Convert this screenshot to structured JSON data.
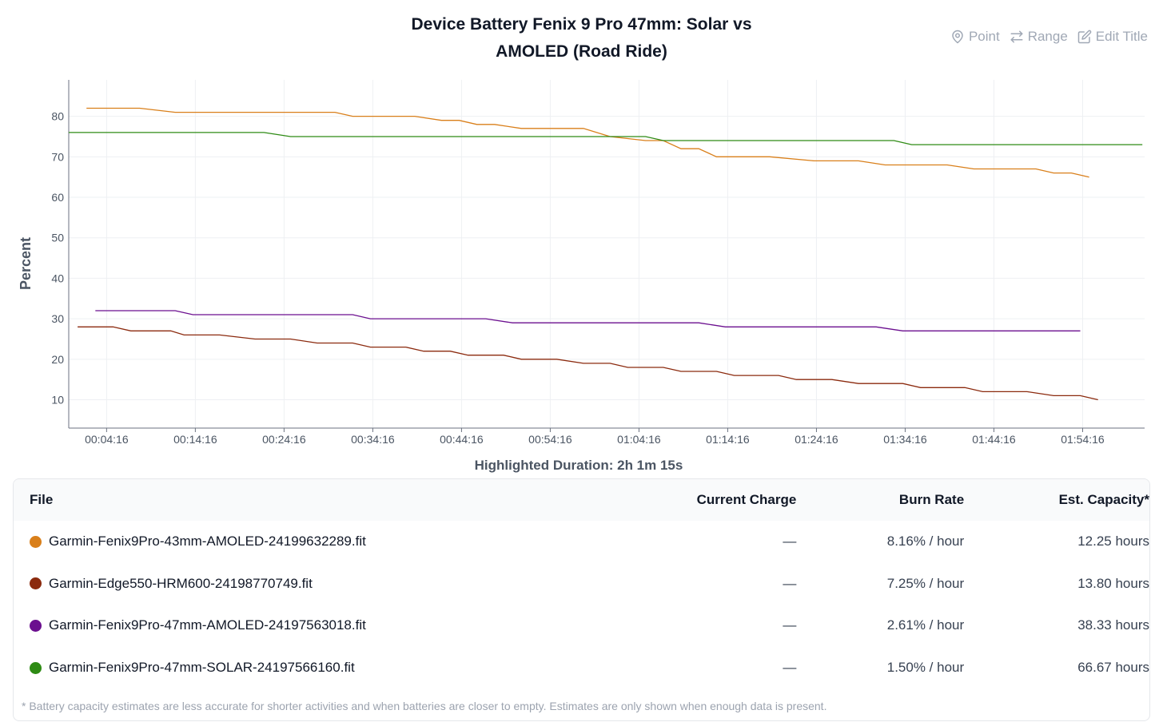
{
  "chart_title_line1": "Device Battery Fenix 9 Pro 47mm: Solar vs",
  "chart_title_line2": "AMOLED (Road Ride)",
  "toolbar": {
    "point": "Point",
    "range": "Range",
    "edit_title": "Edit Title"
  },
  "highlighted_duration": "Highlighted Duration: 2h 1m 15s",
  "table": {
    "headers": {
      "file": "File",
      "current_charge": "Current Charge",
      "burn_rate": "Burn Rate",
      "est_capacity": "Est. Capacity*"
    },
    "rows": [
      {
        "file": "Garmin-Fenix9Pro-43mm-AMOLED-24199632289.fit",
        "color": "#d97f1a",
        "current_charge": "—",
        "burn_rate": "8.16% / hour",
        "est_capacity": "12.25 hours"
      },
      {
        "file": "Garmin-Edge550-HRM600-24198770749.fit",
        "color": "#8b2a0e",
        "current_charge": "—",
        "burn_rate": "7.25% / hour",
        "est_capacity": "13.80 hours"
      },
      {
        "file": "Garmin-Fenix9Pro-47mm-AMOLED-24197563018.fit",
        "color": "#6b0f8f",
        "current_charge": "—",
        "burn_rate": "2.61% / hour",
        "est_capacity": "38.33 hours"
      },
      {
        "file": "Garmin-Fenix9Pro-47mm-SOLAR-24197566160.fit",
        "color": "#2e8b14",
        "current_charge": "—",
        "burn_rate": "1.50% / hour",
        "est_capacity": "66.67 hours"
      }
    ],
    "footnote": "* Battery capacity estimates are less accurate for shorter activities and when batteries are closer to empty. Estimates are only shown when enough data is present."
  },
  "chart_data": {
    "type": "line",
    "ylabel": "Percent",
    "ylim": [
      3,
      89
    ],
    "xlim": [
      "00:00:00",
      "02:01:15"
    ],
    "yticks": [
      10,
      20,
      30,
      40,
      50,
      60,
      70,
      80
    ],
    "xticks": [
      "00:04:16",
      "00:14:16",
      "00:24:16",
      "00:34:16",
      "00:44:16",
      "00:54:16",
      "01:04:16",
      "01:14:16",
      "01:24:16",
      "01:34:16",
      "01:44:16",
      "01:54:16"
    ],
    "grid": true,
    "series": [
      {
        "name": "Garmin-Fenix9Pro-43mm-AMOLED-24199632289.fit",
        "color": "#d97f1a",
        "points": [
          [
            "00:02:00",
            82
          ],
          [
            "00:08:00",
            82
          ],
          [
            "00:12:00",
            81
          ],
          [
            "00:30:00",
            81
          ],
          [
            "00:32:00",
            80
          ],
          [
            "00:39:00",
            80
          ],
          [
            "00:42:00",
            79
          ],
          [
            "00:44:00",
            79
          ],
          [
            "00:46:00",
            78
          ],
          [
            "00:48:00",
            78
          ],
          [
            "00:51:00",
            77
          ],
          [
            "00:58:00",
            77
          ],
          [
            "01:01:00",
            75
          ],
          [
            "01:05:00",
            74
          ],
          [
            "01:07:00",
            74
          ],
          [
            "01:09:00",
            72
          ],
          [
            "01:11:00",
            72
          ],
          [
            "01:13:00",
            70
          ],
          [
            "01:19:00",
            70
          ],
          [
            "01:24:00",
            69
          ],
          [
            "01:29:00",
            69
          ],
          [
            "01:32:00",
            68
          ],
          [
            "01:39:00",
            68
          ],
          [
            "01:42:00",
            67
          ],
          [
            "01:49:00",
            67
          ],
          [
            "01:51:00",
            66
          ],
          [
            "01:53:00",
            66
          ],
          [
            "01:55:00",
            65
          ]
        ]
      },
      {
        "name": "Garmin-Edge550-HRM600-24198770749.fit",
        "color": "#8b2a0e",
        "points": [
          [
            "00:01:00",
            28
          ],
          [
            "00:05:00",
            28
          ],
          [
            "00:07:00",
            27
          ],
          [
            "00:11:30",
            27
          ],
          [
            "00:13:00",
            26
          ],
          [
            "00:17:00",
            26
          ],
          [
            "00:21:00",
            25
          ],
          [
            "00:25:00",
            25
          ],
          [
            "00:28:00",
            24
          ],
          [
            "00:32:00",
            24
          ],
          [
            "00:34:00",
            23
          ],
          [
            "00:38:00",
            23
          ],
          [
            "00:40:00",
            22
          ],
          [
            "00:43:00",
            22
          ],
          [
            "00:45:00",
            21
          ],
          [
            "00:49:00",
            21
          ],
          [
            "00:51:00",
            20
          ],
          [
            "00:55:00",
            20
          ],
          [
            "00:58:00",
            19
          ],
          [
            "01:01:00",
            19
          ],
          [
            "01:03:00",
            18
          ],
          [
            "01:07:00",
            18
          ],
          [
            "01:09:00",
            17
          ],
          [
            "01:13:00",
            17
          ],
          [
            "01:15:00",
            16
          ],
          [
            "01:20:00",
            16
          ],
          [
            "01:22:00",
            15
          ],
          [
            "01:26:00",
            15
          ],
          [
            "01:29:00",
            14
          ],
          [
            "01:34:00",
            14
          ],
          [
            "01:36:00",
            13
          ],
          [
            "01:41:00",
            13
          ],
          [
            "01:43:00",
            12
          ],
          [
            "01:48:00",
            12
          ],
          [
            "01:51:00",
            11
          ],
          [
            "01:54:00",
            11
          ],
          [
            "01:56:00",
            10
          ]
        ]
      },
      {
        "name": "Garmin-Fenix9Pro-47mm-AMOLED-24197563018.fit",
        "color": "#6b0f8f",
        "points": [
          [
            "00:03:00",
            32
          ],
          [
            "00:12:00",
            32
          ],
          [
            "00:14:00",
            31
          ],
          [
            "00:32:00",
            31
          ],
          [
            "00:34:00",
            30
          ],
          [
            "00:47:00",
            30
          ],
          [
            "00:50:00",
            29
          ],
          [
            "01:11:00",
            29
          ],
          [
            "01:14:00",
            28
          ],
          [
            "01:31:00",
            28
          ],
          [
            "01:34:00",
            27
          ],
          [
            "01:54:00",
            27
          ]
        ]
      },
      {
        "name": "Garmin-Fenix9Pro-47mm-SOLAR-24197566160.fit",
        "color": "#2e8b14",
        "points": [
          [
            "00:00:00",
            76
          ],
          [
            "00:22:00",
            76
          ],
          [
            "00:25:00",
            75
          ],
          [
            "01:05:00",
            75
          ],
          [
            "01:07:00",
            74
          ],
          [
            "01:33:00",
            74
          ],
          [
            "01:35:00",
            73
          ],
          [
            "02:01:00",
            73
          ]
        ]
      }
    ]
  }
}
